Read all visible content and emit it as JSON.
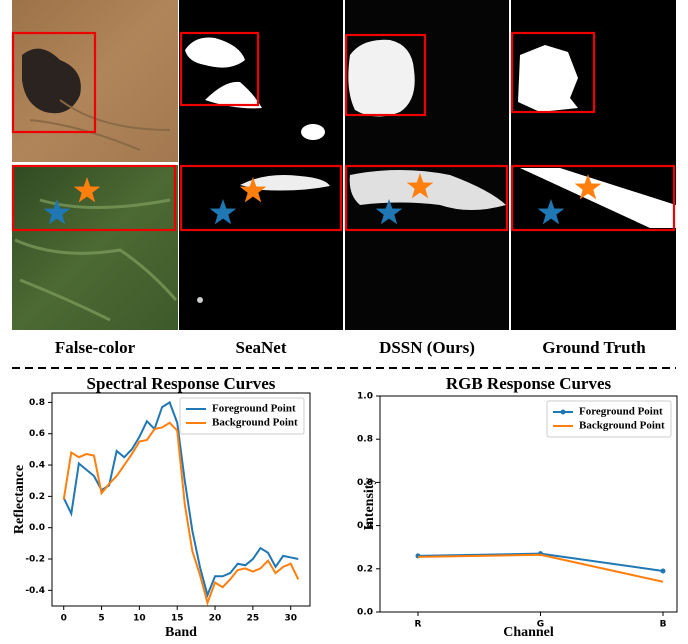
{
  "figure": {
    "column_labels": [
      "False-color",
      "SeaNet",
      "DSSN (Ours)",
      "Ground Truth"
    ]
  },
  "chart_data": [
    {
      "type": "line",
      "title": "Spectral Response Curves",
      "x_label": "Band",
      "y_label": "Reflectance",
      "x": [
        0,
        1,
        2,
        3,
        4,
        5,
        6,
        7,
        8,
        9,
        10,
        11,
        12,
        13,
        14,
        15,
        16,
        17,
        18,
        19,
        20,
        21,
        22,
        23,
        24,
        25,
        26,
        27,
        28,
        29,
        30,
        31
      ],
      "xlim": [
        -1.55,
        32.55
      ],
      "xticks": [
        0,
        5,
        10,
        15,
        20,
        25,
        30
      ],
      "ylim": [
        -0.5,
        0.86
      ],
      "yticks": [
        -0.4,
        -0.2,
        {
          "value": 0,
          "label": "0.0"
        },
        0.2,
        0.4,
        0.6,
        0.8
      ],
      "legend": "upper right",
      "series": [
        {
          "name": "Foreground Point",
          "color": "#1f77b4",
          "values": [
            0.19,
            0.09,
            0.41,
            0.37,
            0.33,
            0.24,
            0.27,
            0.49,
            0.45,
            0.5,
            0.58,
            0.68,
            0.63,
            0.77,
            0.8,
            0.67,
            0.3,
            -0.02,
            -0.25,
            -0.43,
            -0.31,
            -0.31,
            -0.29,
            -0.23,
            -0.24,
            -0.2,
            -0.13,
            -0.16,
            -0.25,
            -0.18,
            -0.19,
            -0.2
          ]
        },
        {
          "name": "Background Point",
          "color": "#ff7f0e",
          "values": [
            0.18,
            0.48,
            0.45,
            0.47,
            0.46,
            0.22,
            0.28,
            0.33,
            0.4,
            0.47,
            0.55,
            0.56,
            0.63,
            0.64,
            0.67,
            0.62,
            0.15,
            -0.15,
            -0.3,
            -0.48,
            -0.35,
            -0.38,
            -0.33,
            -0.27,
            -0.26,
            -0.28,
            -0.26,
            -0.21,
            -0.29,
            -0.25,
            -0.23,
            -0.33
          ]
        }
      ]
    },
    {
      "type": "line",
      "title": "RGB Response Curves",
      "x_label": "Channel",
      "y_label": "Intensity",
      "categories": [
        "R",
        "G",
        "B"
      ],
      "ylim": [
        0,
        1
      ],
      "yticks": [
        {
          "value": 0,
          "label": "0.0"
        },
        0.2,
        0.4,
        0.6,
        0.8,
        {
          "value": 1,
          "label": "1.0"
        }
      ],
      "legend": "upper right",
      "series": [
        {
          "name": "Foreground Point",
          "color": "#1f77b4",
          "marker": "circle",
          "values": [
            0.26,
            0.27,
            0.19
          ]
        },
        {
          "name": "Background Point",
          "color": "#ff7f0e",
          "values": [
            0.255,
            0.265,
            0.14
          ]
        }
      ]
    }
  ]
}
